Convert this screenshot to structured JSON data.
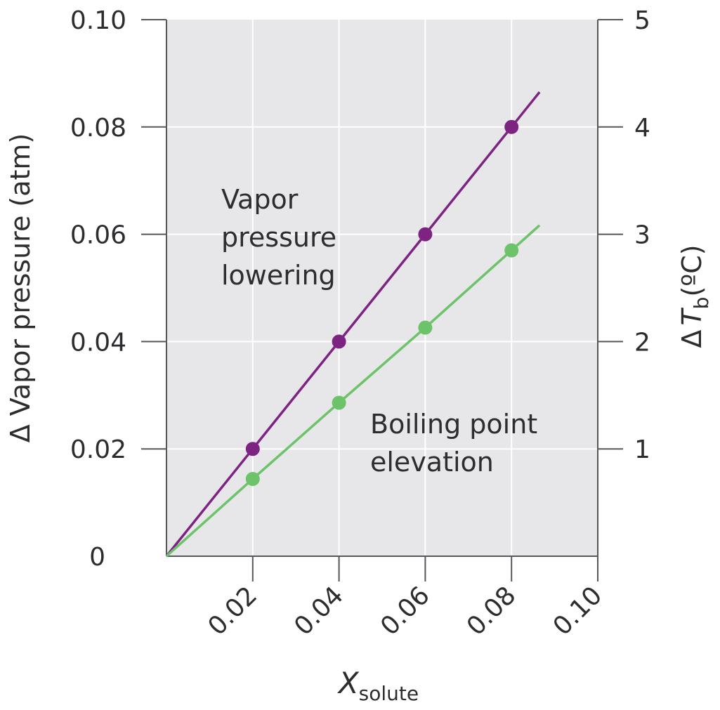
{
  "chart_data": {
    "type": "line",
    "x": [
      0,
      0.02,
      0.04,
      0.06,
      0.08
    ],
    "xlim": [
      0,
      0.1
    ],
    "x_ticks": [
      0.02,
      0.04,
      0.06,
      0.08,
      0.1
    ],
    "x_tick_labels": [
      "0.02",
      "0.04",
      "0.06",
      "0.08",
      "0.10"
    ],
    "left_axis": {
      "ylim": [
        0,
        0.1
      ],
      "ticks": [
        0,
        0.02,
        0.04,
        0.06,
        0.08,
        0.1
      ],
      "tick_labels": [
        "0",
        "0.02",
        "0.04",
        "0.06",
        "0.08",
        "0.10"
      ],
      "label": "Δ Vapor pressure (atm)"
    },
    "right_axis": {
      "ylim": [
        0,
        5
      ],
      "ticks": [
        1,
        2,
        3,
        4,
        5
      ],
      "tick_labels": [
        "1",
        "2",
        "3",
        "4",
        "5"
      ],
      "label_prefix": "Δ",
      "label_var": "T",
      "label_subscript": "b",
      "label_unit": "(ºC)"
    },
    "xlabel_var": "X",
    "xlabel_subscript": "solute",
    "series": [
      {
        "name": "Vapor pressure lowering",
        "axis": "left",
        "color": "#7d2382",
        "x": [
          0,
          0.02,
          0.04,
          0.06,
          0.08
        ],
        "values": [
          0,
          0.02,
          0.04,
          0.06,
          0.08
        ],
        "line_extends_to_x": 0.0865,
        "annotation": [
          "Vapor",
          "pressure",
          "lowering"
        ]
      },
      {
        "name": "Boiling point elevation",
        "axis": "right",
        "color": "#6cc36a",
        "x": [
          0,
          0.02,
          0.04,
          0.06,
          0.08
        ],
        "values": [
          0,
          0.72,
          1.43,
          2.13,
          2.85
        ],
        "line_extends_to_x": 0.0865,
        "annotation": [
          "Boiling point",
          "elevation"
        ]
      }
    ],
    "grid": true,
    "plot_background": "#e7e7ea"
  }
}
